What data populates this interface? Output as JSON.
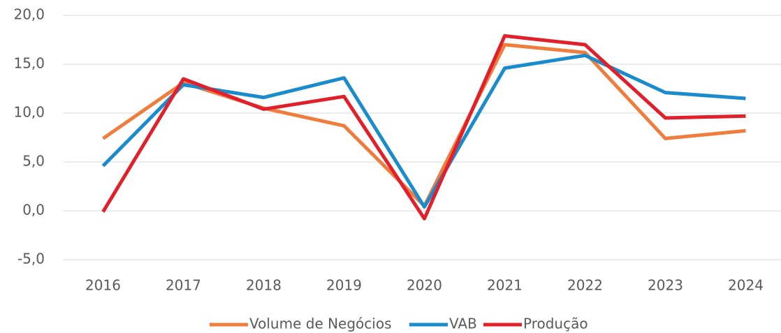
{
  "chart_data": {
    "type": "line",
    "categories": [
      "2016",
      "2017",
      "2018",
      "2019",
      "2020",
      "2021",
      "2022",
      "2023",
      "2024"
    ],
    "series": [
      {
        "name": "Volume de Negócios",
        "color": "#ee7d3e",
        "values": [
          7.4,
          13.1,
          10.5,
          8.7,
          0.5,
          17.0,
          16.2,
          7.4,
          8.2
        ]
      },
      {
        "name": "VAB",
        "color": "#1a8ccc",
        "values": [
          4.6,
          12.9,
          11.6,
          13.6,
          0.4,
          14.6,
          15.9,
          12.1,
          11.5
        ]
      },
      {
        "name": "Produção",
        "color": "#e0202a",
        "values": [
          -0.1,
          13.5,
          10.4,
          11.7,
          -0.8,
          17.9,
          17.0,
          9.5,
          9.7
        ]
      }
    ],
    "ylim": [
      -5,
      20
    ],
    "yticks": [
      {
        "value": -5,
        "label": "-5,0"
      },
      {
        "value": 0,
        "label": "0,0"
      },
      {
        "value": 5,
        "label": "5,0"
      },
      {
        "value": 10,
        "label": "10,0"
      },
      {
        "value": 15,
        "label": "15,0"
      },
      {
        "value": 20,
        "label": "20,0"
      }
    ],
    "grid": true,
    "legend": "bottom"
  }
}
